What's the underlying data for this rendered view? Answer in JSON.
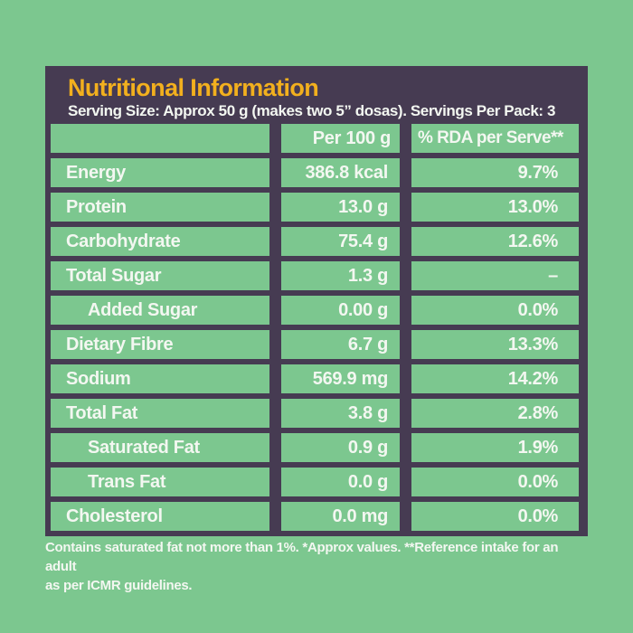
{
  "colors": {
    "background_green": "#7cc78f",
    "panel_purple": "#463b52",
    "title_yellow": "#f2b01e",
    "text_white": "#f3f7f1"
  },
  "header": {
    "title": "Nutritional Information",
    "serving_line": "Serving Size: Approx 50 g (makes two 5” dosas). Servings Per Pack: 3"
  },
  "table": {
    "columns": [
      "",
      "Per 100 g",
      "% RDA per Serve**"
    ],
    "rows": [
      {
        "label": "Energy",
        "per100": "386.8 kcal",
        "rda": "9.7%",
        "indent": false
      },
      {
        "label": "Protein",
        "per100": "13.0 g",
        "rda": "13.0%",
        "indent": false
      },
      {
        "label": "Carbohydrate",
        "per100": "75.4 g",
        "rda": "12.6%",
        "indent": false
      },
      {
        "label": "Total Sugar",
        "per100": "1.3 g",
        "rda": "–",
        "indent": false
      },
      {
        "label": "Added Sugar",
        "per100": "0.00 g",
        "rda": "0.0%",
        "indent": true
      },
      {
        "label": "Dietary Fibre",
        "per100": "6.7 g",
        "rda": "13.3%",
        "indent": false
      },
      {
        "label": "Sodium",
        "per100": "569.9 mg",
        "rda": "14.2%",
        "indent": false
      },
      {
        "label": "Total Fat",
        "per100": "3.8 g",
        "rda": "2.8%",
        "indent": false
      },
      {
        "label": "Saturated Fat",
        "per100": "0.9 g",
        "rda": "1.9%",
        "indent": true
      },
      {
        "label": "Trans Fat",
        "per100": "0.0 g",
        "rda": "0.0%",
        "indent": true
      },
      {
        "label": "Cholesterol",
        "per100": "0.0 mg",
        "rda": "0.0%",
        "indent": false
      }
    ]
  },
  "footer": {
    "lines": [
      "Contains saturated fat not more than 1%. *Approx values. **Reference intake for an adult",
      "as per ICMR guidelines."
    ]
  }
}
